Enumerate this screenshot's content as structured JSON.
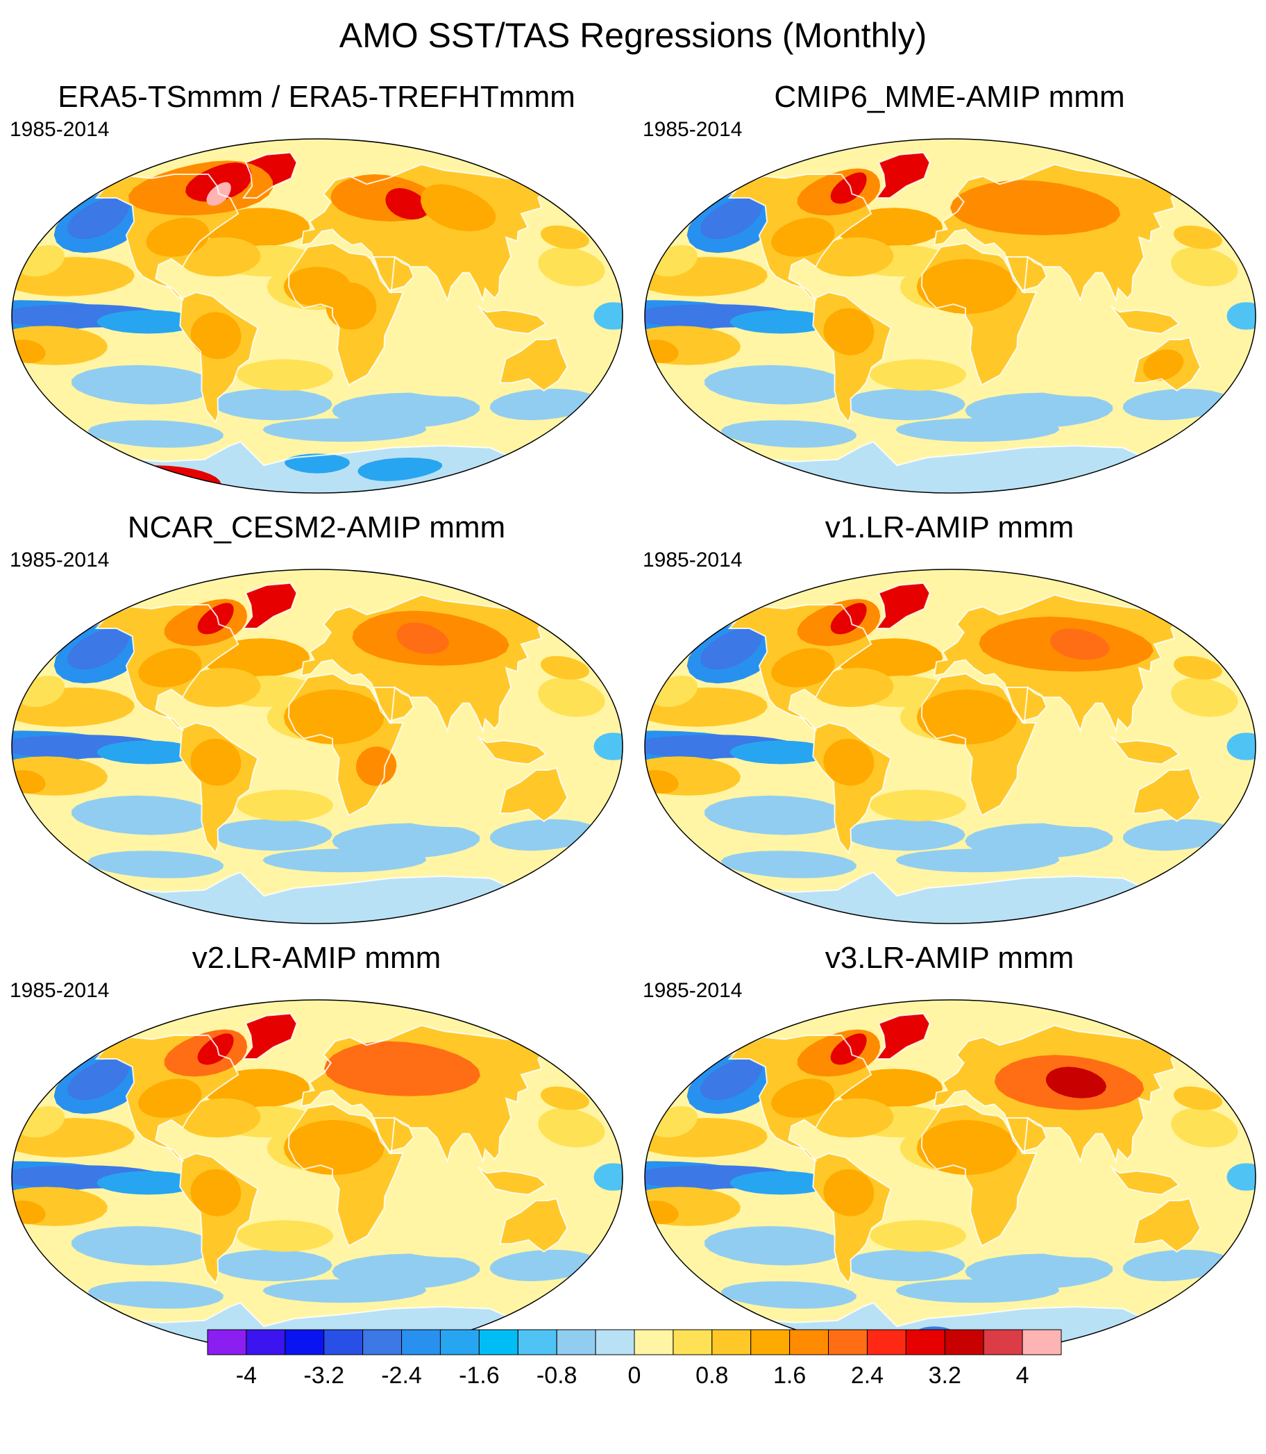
{
  "title": "AMO SST/TAS Regressions (Monthly)",
  "panels": [
    {
      "title": "ERA5-TSmmm / ERA5-TREFHTmmm",
      "period": "1985-2014",
      "variant": "obs"
    },
    {
      "title": "CMIP6_MME-AMIP  mmm",
      "period": "1985-2014",
      "variant": "mme"
    },
    {
      "title": "NCAR_CESM2-AMIP  mmm",
      "period": "1985-2014",
      "variant": "cesm"
    },
    {
      "title": "v1.LR-AMIP  mmm",
      "period": "1985-2014",
      "variant": "v1"
    },
    {
      "title": "v2.LR-AMIP  mmm",
      "period": "1985-2014",
      "variant": "v2"
    },
    {
      "title": "v3.LR-AMIP  mmm",
      "period": "1985-2014",
      "variant": "v3"
    }
  ],
  "colorbar": {
    "colors": [
      "#8b1ef0",
      "#3c14f0",
      "#0a14f0",
      "#2850e6",
      "#3c78e6",
      "#2891f0",
      "#28a5f0",
      "#00bef5",
      "#50c3f5",
      "#91cdf0",
      "#b9e1f5",
      "#fff5a5",
      "#ffe155",
      "#ffc828",
      "#ffaa00",
      "#ff8c00",
      "#ff6e14",
      "#ff2814",
      "#e60000",
      "#c80000",
      "#dc3c46",
      "#ffb4b4"
    ],
    "labels": [
      "-4",
      "-3.2",
      "-2.4",
      "-1.6",
      "-0.8",
      "0",
      "0.8",
      "1.6",
      "2.4",
      "3.2",
      "4"
    ]
  }
}
